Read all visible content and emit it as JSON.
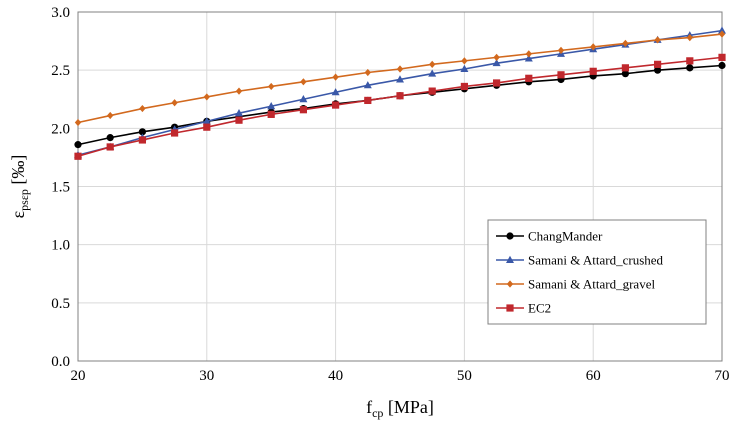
{
  "chart_data": {
    "type": "line",
    "title": "",
    "xlabel_main": "f",
    "xlabel_sub": "cp",
    "xlabel_unit": " [MPa]",
    "ylabel_main": "ε",
    "ylabel_sub": "psεp",
    "ylabel_unit": " [‰]",
    "xlim": [
      20,
      70
    ],
    "ylim": [
      0.0,
      3.0
    ],
    "xticks": [
      "20",
      "30",
      "40",
      "50",
      "60",
      "70"
    ],
    "yticks": [
      "0.0",
      "0.5",
      "1.0",
      "1.5",
      "2.0",
      "2.5",
      "3.0"
    ],
    "grid": true,
    "legend_position": "bottom-right",
    "x": [
      20,
      22.5,
      25,
      27.5,
      30,
      32.5,
      35,
      37.5,
      40,
      42.5,
      45,
      47.5,
      50,
      52.5,
      55,
      57.5,
      60,
      62.5,
      65,
      67.5,
      70
    ],
    "series": [
      {
        "name": "ChangMander",
        "color": "#000000",
        "marker": "circle",
        "values": [
          1.86,
          1.92,
          1.97,
          2.01,
          2.06,
          2.1,
          2.14,
          2.17,
          2.21,
          2.24,
          2.28,
          2.31,
          2.34,
          2.37,
          2.4,
          2.42,
          2.45,
          2.47,
          2.5,
          2.52,
          2.54
        ]
      },
      {
        "name": "Samani & Attard_crushed",
        "color": "#3a58a8",
        "marker": "triangle",
        "values": [
          1.77,
          1.84,
          1.92,
          1.99,
          2.06,
          2.13,
          2.19,
          2.25,
          2.31,
          2.37,
          2.42,
          2.47,
          2.51,
          2.56,
          2.6,
          2.64,
          2.68,
          2.72,
          2.76,
          2.8,
          2.84
        ]
      },
      {
        "name": "Samani & Attard_gravel",
        "color": "#d2691e",
        "marker": "diamond",
        "values": [
          2.05,
          2.11,
          2.17,
          2.22,
          2.27,
          2.32,
          2.36,
          2.4,
          2.44,
          2.48,
          2.51,
          2.55,
          2.58,
          2.61,
          2.64,
          2.67,
          2.7,
          2.73,
          2.76,
          2.78,
          2.81
        ]
      },
      {
        "name": "EC2",
        "color": "#c0282d",
        "marker": "square",
        "values": [
          1.76,
          1.84,
          1.9,
          1.96,
          2.01,
          2.07,
          2.12,
          2.16,
          2.2,
          2.24,
          2.28,
          2.32,
          2.36,
          2.39,
          2.43,
          2.46,
          2.49,
          2.52,
          2.55,
          2.58,
          2.61
        ]
      }
    ]
  }
}
